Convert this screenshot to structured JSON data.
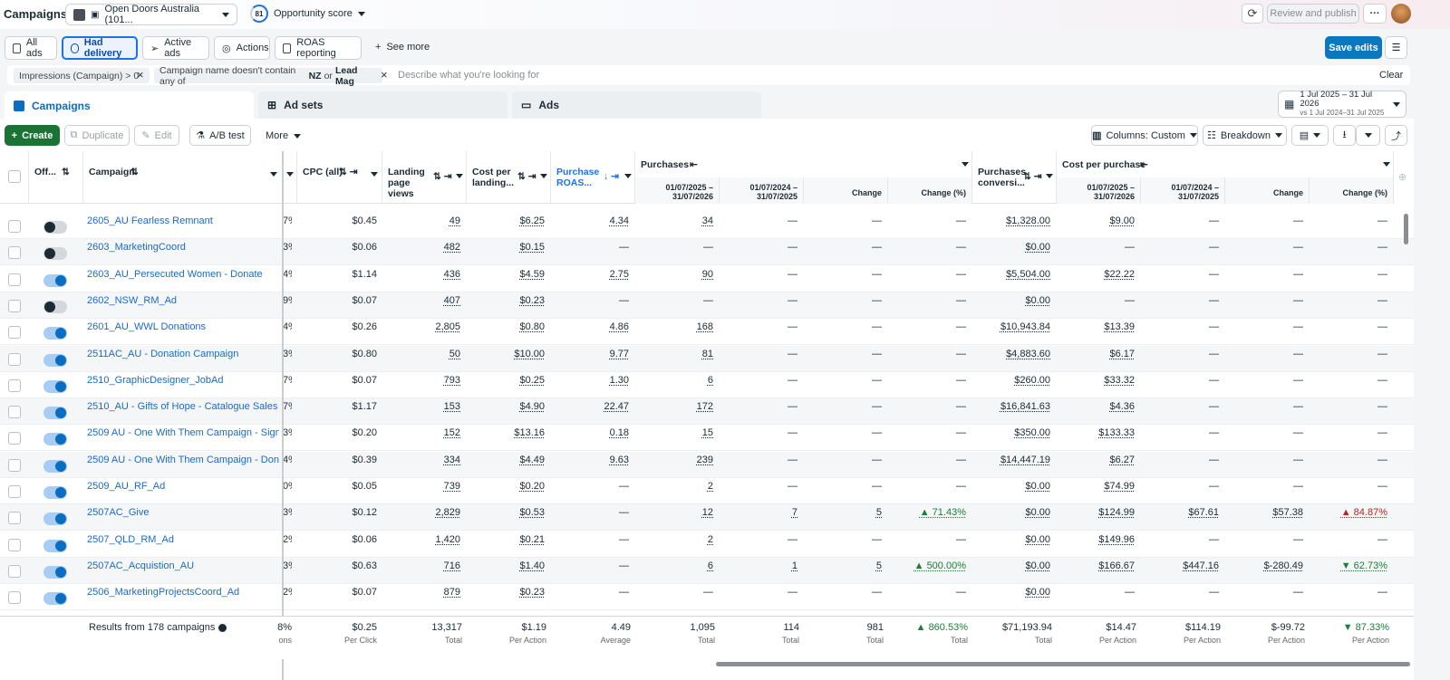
{
  "topbar": {
    "title": "Campaigns",
    "account": "Open Doors Australia (101...",
    "opportunity_score": "81",
    "opportunity_label": "Opportunity score",
    "review_publish": "Review and publish",
    "more": "···"
  },
  "views": {
    "all_ads": "All ads",
    "had_delivery": "Had delivery",
    "active_ads": "Active ads",
    "actions": "Actions",
    "roas": "ROAS reporting",
    "see_more": "See more",
    "save_edits": "Save edits"
  },
  "filters": {
    "f1": "Impressions (Campaign) > 0",
    "f2_prefix": "Campaign name doesn't contain any of",
    "f2_a": "NZ",
    "f2_or": "or",
    "f2_b": "Lead Mag",
    "placeholder": "Describe what you're looking for",
    "clear": "Clear"
  },
  "levels": {
    "campaigns": "Campaigns",
    "adsets": "Ad sets",
    "ads": "Ads",
    "date_range": "1 Jul 2025 – 31 Jul 2026",
    "compare_range": "vs 1 Jul 2024–31 Jul 2025"
  },
  "actions": {
    "create": "Create",
    "duplicate": "Duplicate",
    "edit": "Edit",
    "ab_test": "A/B test",
    "more": "More",
    "columns": "Columns: Custom",
    "breakdown": "Breakdown"
  },
  "headers": {
    "offon": "Off...",
    "campaign": "Campaign",
    "cpc": "CPC (all)",
    "landing": "Landing page views",
    "cost_landing": "Cost per landing...",
    "roas": "Purchase ROAS...",
    "purchases": "Purchases",
    "pur_conv": "Purchases conversi...",
    "cost_purchase": "Cost per purchase",
    "period_a": "01/07/2025 – 31/07/2026",
    "period_b": "01/07/2024 – 31/07/2025",
    "change": "Change",
    "change_pct": "Change (%)"
  },
  "rows": [
    {
      "name": "2605_AU Fearless Remnant",
      "on": false,
      "c": "7%",
      "cpc": "$0.45",
      "lpv": "49",
      "cpl": "$6.25",
      "roas": "4.34",
      "p1": "34",
      "p2": "—",
      "pch": "—",
      "ppct": "—",
      "conv": "$1,328.00",
      "cpp1": "$9.00",
      "cpp2": "—",
      "cch": "—",
      "cpct": "—"
    },
    {
      "name": "2603_MarketingCoord",
      "on": false,
      "c": "3%",
      "cpc": "$0.06",
      "lpv": "482",
      "cpl": "$0.15",
      "roas": "—",
      "p1": "—",
      "p2": "—",
      "pch": "—",
      "ppct": "—",
      "conv": "$0.00",
      "cpp1": "—",
      "cpp2": "—",
      "cch": "—",
      "cpct": "—"
    },
    {
      "name": "2603_AU_Persecuted Women - Donate",
      "on": true,
      "c": "4%",
      "cpc": "$1.14",
      "lpv": "436",
      "cpl": "$4.59",
      "roas": "2.75",
      "p1": "90",
      "p2": "—",
      "pch": "—",
      "ppct": "—",
      "conv": "$5,504.00",
      "cpp1": "$22.22",
      "cpp2": "—",
      "cch": "—",
      "cpct": "—"
    },
    {
      "name": "2602_NSW_RM_Ad",
      "on": false,
      "c": "9%",
      "cpc": "$0.07",
      "lpv": "407",
      "cpl": "$0.23",
      "roas": "—",
      "p1": "—",
      "p2": "—",
      "pch": "—",
      "ppct": "—",
      "conv": "$0.00",
      "cpp1": "—",
      "cpp2": "—",
      "cch": "—",
      "cpct": "—"
    },
    {
      "name": "2601_AU_WWL Donations",
      "on": true,
      "c": "4%",
      "cpc": "$0.26",
      "lpv": "2,805",
      "cpl": "$0.80",
      "roas": "4.86",
      "p1": "168",
      "p2": "—",
      "pch": "—",
      "ppct": "—",
      "conv": "$10,943.84",
      "cpp1": "$13.39",
      "cpp2": "—",
      "cch": "—",
      "cpct": "—"
    },
    {
      "name": "2511AC_AU - Donation Campaign",
      "on": true,
      "c": "3%",
      "cpc": "$0.80",
      "lpv": "50",
      "cpl": "$10.00",
      "roas": "9.77",
      "p1": "81",
      "p2": "—",
      "pch": "—",
      "ppct": "—",
      "conv": "$4,883.60",
      "cpp1": "$6.17",
      "cpp2": "—",
      "cch": "—",
      "cpct": "—"
    },
    {
      "name": "2510_GraphicDesigner_JobAd",
      "on": true,
      "c": "7%",
      "cpc": "$0.07",
      "lpv": "793",
      "cpl": "$0.25",
      "roas": "1.30",
      "p1": "6",
      "p2": "—",
      "pch": "—",
      "ppct": "—",
      "conv": "$260.00",
      "cpp1": "$33.32",
      "cpp2": "—",
      "cch": "—",
      "cpct": "—"
    },
    {
      "name": "2510_AU - Gifts of Hope - Catalogue Sales",
      "on": true,
      "c": "7%",
      "cpc": "$1.17",
      "lpv": "153",
      "cpl": "$4.90",
      "roas": "22.47",
      "p1": "172",
      "p2": "—",
      "pch": "—",
      "ppct": "—",
      "conv": "$16,841.63",
      "cpp1": "$4.36",
      "cpp2": "—",
      "cch": "—",
      "cpct": "—"
    },
    {
      "name": "2509 AU - One With Them Campaign - Sign Ups",
      "on": true,
      "c": "3%",
      "cpc": "$0.20",
      "lpv": "152",
      "cpl": "$13.16",
      "roas": "0.18",
      "p1": "15",
      "p2": "—",
      "pch": "—",
      "ppct": "—",
      "conv": "$350.00",
      "cpp1": "$133.33",
      "cpp2": "—",
      "cch": "—",
      "cpct": "—"
    },
    {
      "name": "2509 AU - One With Them Campaign - Donations",
      "on": true,
      "c": "4%",
      "cpc": "$0.39",
      "lpv": "334",
      "cpl": "$4.49",
      "roas": "9.63",
      "p1": "239",
      "p2": "—",
      "pch": "—",
      "ppct": "—",
      "conv": "$14,447.19",
      "cpp1": "$6.27",
      "cpp2": "—",
      "cch": "—",
      "cpct": "—"
    },
    {
      "name": "2509_AU_RF_Ad",
      "on": true,
      "c": "0%",
      "cpc": "$0.05",
      "lpv": "739",
      "cpl": "$0.20",
      "roas": "—",
      "p1": "2",
      "p2": "—",
      "pch": "—",
      "ppct": "—",
      "conv": "$0.00",
      "cpp1": "$74.99",
      "cpp2": "—",
      "cch": "—",
      "cpct": "—"
    },
    {
      "name": "2507AC_Give",
      "on": true,
      "c": "3%",
      "cpc": "$0.12",
      "lpv": "2,829",
      "cpl": "$0.53",
      "roas": "—",
      "p1": "12",
      "p2": "7",
      "pch": "5",
      "ppct": "▲ 71.43%",
      "ppct_class": "up",
      "conv": "$0.00",
      "cpp1": "$124.99",
      "cpp2": "$67.61",
      "cch": "$57.38",
      "cpct": "▲ 84.87%",
      "cpct_class": "upred"
    },
    {
      "name": "2507_QLD_RM_Ad",
      "on": true,
      "c": "2%",
      "cpc": "$0.06",
      "lpv": "1,420",
      "cpl": "$0.21",
      "roas": "—",
      "p1": "2",
      "p2": "—",
      "pch": "—",
      "ppct": "—",
      "conv": "$0.00",
      "cpp1": "$149.96",
      "cpp2": "—",
      "cch": "—",
      "cpct": "—"
    },
    {
      "name": "2507AC_Acquistion_AU",
      "on": true,
      "c": "3%",
      "cpc": "$0.63",
      "lpv": "716",
      "cpl": "$1.40",
      "roas": "—",
      "p1": "6",
      "p2": "1",
      "pch": "5",
      "ppct": "▲ 500.00%",
      "ppct_class": "up",
      "conv": "$0.00",
      "cpp1": "$166.67",
      "cpp2": "$447.16",
      "cch": "$-280.49",
      "cpct": "▼ 62.73%",
      "cpct_class": "down"
    },
    {
      "name": "2506_MarketingProjectsCoord_Ad",
      "on": true,
      "c": "2%",
      "cpc": "$0.07",
      "lpv": "879",
      "cpl": "$0.23",
      "roas": "—",
      "p1": "—",
      "p2": "—",
      "pch": "—",
      "ppct": "—",
      "conv": "$0.00",
      "cpp1": "—",
      "cpp2": "—",
      "cch": "—",
      "cpct": "—"
    }
  ],
  "totals": {
    "label": "Results from 178 campaigns",
    "c": "8%",
    "c_l": "ons",
    "cpc": "$0.25",
    "cpc_l": "Per Click",
    "lpv": "13,317",
    "lpv_l": "Total",
    "cpl": "$1.19",
    "cpl_l": "Per Action",
    "roas": "4.49",
    "roas_l": "Average",
    "p1": "1,095",
    "p1_l": "Total",
    "p2": "114",
    "p2_l": "Total",
    "pch": "981",
    "pch_l": "Total",
    "ppct": "▲ 860.53%",
    "ppct_l": "Total",
    "conv": "$71,193.94",
    "conv_l": "Total",
    "cpp1": "$14.47",
    "cpp1_l": "Per Action",
    "cpp2": "$114.19",
    "cpp2_l": "Per Action",
    "cch": "$-99.72",
    "cch_l": "Per Action",
    "cpct": "▼ 87.33%",
    "cpct_l": "Per Action"
  }
}
